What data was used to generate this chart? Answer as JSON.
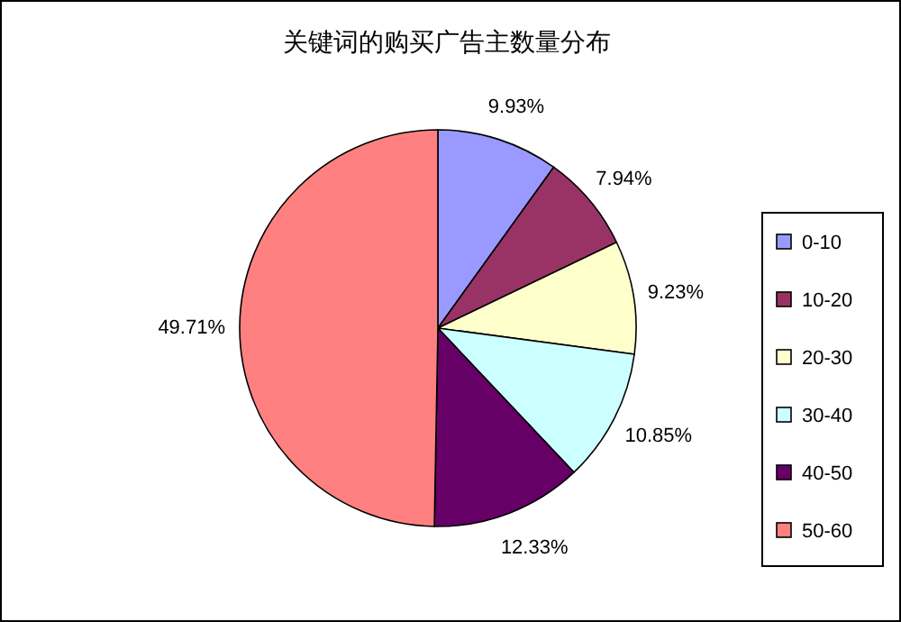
{
  "chart_data": {
    "type": "pie",
    "title": "关键词的购买广告主数量分布",
    "categories": [
      "0-10",
      "10-20",
      "20-30",
      "30-40",
      "40-50",
      "50-60"
    ],
    "values": [
      9.93,
      7.94,
      9.23,
      10.85,
      12.33,
      49.71
    ],
    "value_labels": [
      "9.93%",
      "7.94%",
      "9.23%",
      "10.85%",
      "12.33%",
      "49.71%"
    ],
    "colors": [
      "#9999ff",
      "#993366",
      "#ffffcc",
      "#ccffff",
      "#660066",
      "#ff8080"
    ],
    "legend": "right"
  }
}
